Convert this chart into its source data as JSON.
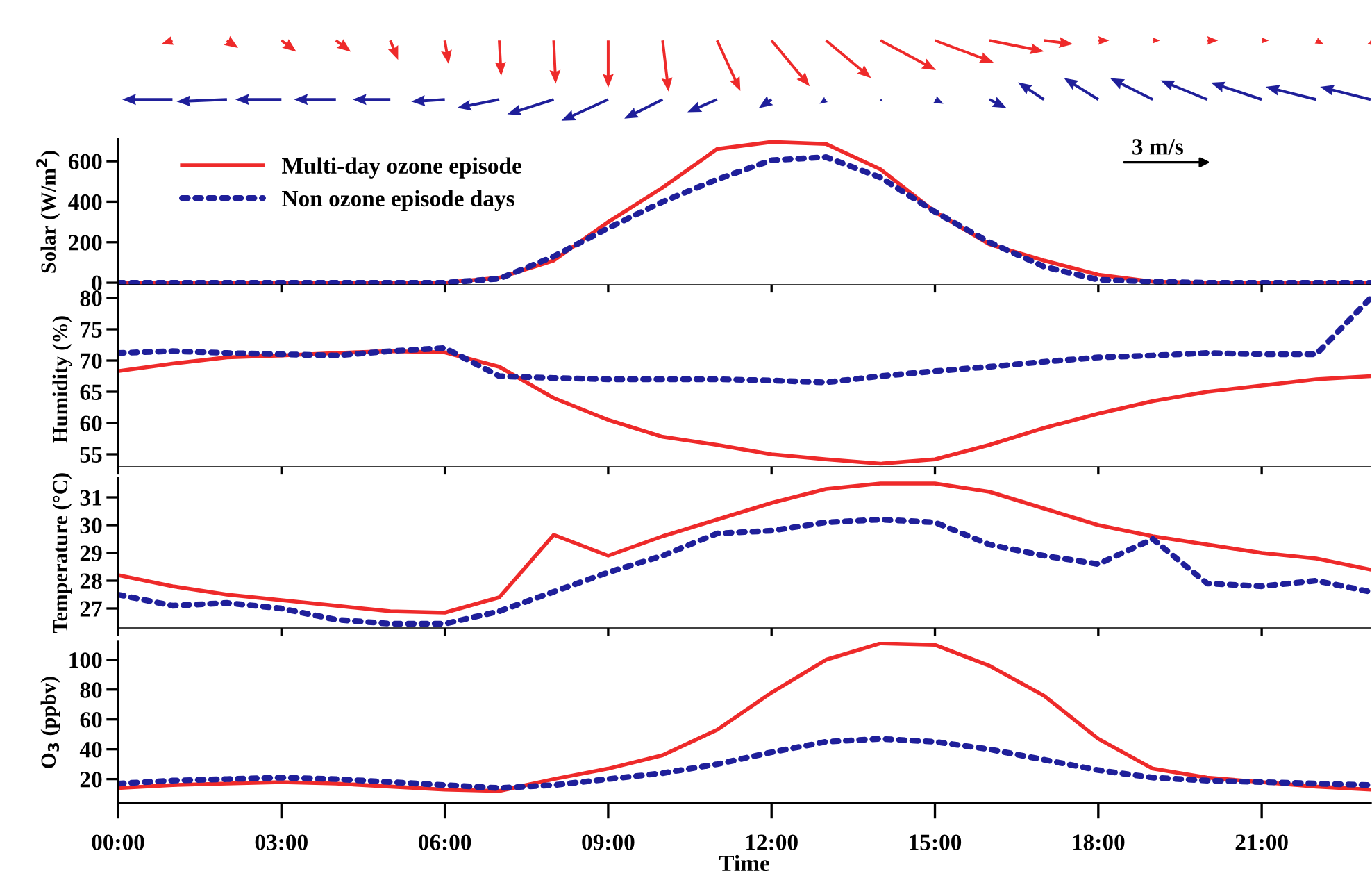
{
  "chart_data": [
    {
      "type": "line",
      "ylabel": "Solar (W/m$^{2}$)",
      "x": [
        0,
        1,
        2,
        3,
        4,
        5,
        6,
        7,
        8,
        9,
        10,
        11,
        12,
        13,
        14,
        15,
        16,
        17,
        18,
        19,
        20,
        21,
        22,
        23
      ],
      "xlim": [
        0,
        23
      ],
      "xticks": [
        {
          "value": 0,
          "label": null
        },
        {
          "value": 3,
          "label": null
        },
        {
          "value": 6,
          "label": null
        },
        {
          "value": 9,
          "label": null
        },
        {
          "value": 12,
          "label": null
        },
        {
          "value": 15,
          "label": null
        },
        {
          "value": 18,
          "label": null
        },
        {
          "value": 21,
          "label": null
        }
      ],
      "ylim": [
        -10,
        710
      ],
      "yticks": [
        0,
        200,
        400,
        600
      ],
      "legend": "top left",
      "grid": false,
      "tick_labels": "y",
      "annotations": [
        "3 m/s"
      ],
      "series": [
        {
          "name": "Multi-day ozone episode",
          "color": "#ee2a2a",
          "line_style": "solid",
          "values": [
            0,
            0,
            0,
            0,
            0,
            0,
            0,
            25,
            110,
            300,
            470,
            660,
            695,
            685,
            560,
            350,
            190,
            110,
            40,
            5,
            0,
            0,
            0,
            0
          ]
        },
        {
          "name": "Non ozone episode days",
          "color": "#1f1f9a",
          "line_style": "dotted",
          "values": [
            0,
            0,
            0,
            0,
            0,
            0,
            0,
            20,
            130,
            270,
            400,
            510,
            605,
            620,
            520,
            350,
            200,
            80,
            15,
            5,
            0,
            0,
            0,
            0
          ]
        }
      ]
    },
    {
      "type": "line",
      "ylabel": "Humidity (%)",
      "x": [
        0,
        1,
        2,
        3,
        4,
        5,
        6,
        7,
        8,
        9,
        10,
        11,
        12,
        13,
        14,
        15,
        16,
        17,
        18,
        19,
        20,
        21,
        22,
        23
      ],
      "xlim": [
        0,
        23
      ],
      "xticks": [
        {
          "value": 0,
          "label": null
        },
        {
          "value": 3,
          "label": null
        },
        {
          "value": 6,
          "label": null
        },
        {
          "value": 9,
          "label": null
        },
        {
          "value": 12,
          "label": null
        },
        {
          "value": 15,
          "label": null
        },
        {
          "value": 18,
          "label": null
        },
        {
          "value": 21,
          "label": null
        }
      ],
      "ylim": [
        53,
        81
      ],
      "yticks": [
        55,
        60,
        65,
        70,
        75,
        80
      ],
      "grid": false,
      "tick_labels": "y",
      "series": [
        {
          "color": "#ee2a2a",
          "line_style": "solid",
          "values": [
            68.3,
            69.5,
            70.5,
            70.8,
            71.2,
            71.5,
            71.3,
            69,
            64,
            60.5,
            57.8,
            56.5,
            55,
            54.2,
            53.5,
            54.2,
            56.5,
            59.2,
            61.5,
            63.5,
            65,
            66,
            67,
            67.5
          ]
        },
        {
          "color": "#1f1f9a",
          "line_style": "dotted",
          "values": [
            71.2,
            71.5,
            71.2,
            71,
            70.8,
            71.5,
            72,
            67.5,
            67.2,
            67,
            67,
            67,
            66.8,
            66.5,
            67.5,
            68.3,
            69,
            69.8,
            70.5,
            70.8,
            71.2,
            71,
            71,
            80
          ]
        }
      ]
    },
    {
      "type": "line",
      "ylabel": "Temperature (°C)",
      "x": [
        0,
        1,
        2,
        3,
        4,
        5,
        6,
        7,
        8,
        9,
        10,
        11,
        12,
        13,
        14,
        15,
        16,
        17,
        18,
        19,
        20,
        21,
        22,
        23
      ],
      "xlim": [
        0,
        23
      ],
      "xticks": [
        {
          "value": 0,
          "label": null
        },
        {
          "value": 3,
          "label": null
        },
        {
          "value": 6,
          "label": null
        },
        {
          "value": 9,
          "label": null
        },
        {
          "value": 12,
          "label": null
        },
        {
          "value": 15,
          "label": null
        },
        {
          "value": 18,
          "label": null
        },
        {
          "value": 21,
          "label": null
        }
      ],
      "ylim": [
        26.3,
        31.7
      ],
      "yticks": [
        27,
        28,
        29,
        30,
        31
      ],
      "grid": false,
      "tick_labels": "y",
      "series": [
        {
          "color": "#ee2a2a",
          "line_style": "solid",
          "values": [
            28.2,
            27.8,
            27.5,
            27.3,
            27.1,
            26.9,
            26.85,
            27.4,
            29.65,
            28.9,
            29.6,
            30.2,
            30.8,
            31.3,
            31.5,
            31.5,
            31.2,
            30.6,
            30,
            29.6,
            29.3,
            29,
            28.8,
            28.4
          ]
        },
        {
          "color": "#1f1f9a",
          "line_style": "dotted",
          "values": [
            27.5,
            27.1,
            27.2,
            27,
            26.6,
            26.45,
            26.45,
            26.9,
            27.6,
            28.3,
            28.9,
            29.7,
            29.8,
            30.1,
            30.2,
            30.1,
            29.3,
            28.9,
            28.6,
            29.5,
            27.9,
            27.8,
            28,
            27.6
          ]
        }
      ]
    },
    {
      "type": "line",
      "ylabel": "O$_{3}$ (ppbv)",
      "xlabel": "Time",
      "x": [
        0,
        1,
        2,
        3,
        4,
        5,
        6,
        7,
        8,
        9,
        10,
        11,
        12,
        13,
        14,
        15,
        16,
        17,
        18,
        19,
        20,
        21,
        22,
        23
      ],
      "xlim": [
        0,
        23
      ],
      "xticks": [
        {
          "value": 0,
          "label": "00:00"
        },
        {
          "value": 3,
          "label": "03:00"
        },
        {
          "value": 6,
          "label": "06:00"
        },
        {
          "value": 9,
          "label": "09:00"
        },
        {
          "value": 12,
          "label": "12:00"
        },
        {
          "value": 15,
          "label": "15:00"
        },
        {
          "value": 18,
          "label": "18:00"
        },
        {
          "value": 21,
          "label": "21:00"
        }
      ],
      "ylim": [
        4,
        112
      ],
      "yticks": [
        20,
        40,
        60,
        80,
        100
      ],
      "grid": false,
      "series": [
        {
          "color": "#ee2a2a",
          "line_style": "solid",
          "values": [
            14,
            16,
            17,
            18,
            17,
            15,
            13,
            12,
            20,
            27,
            36,
            53,
            78,
            100,
            111,
            110,
            96,
            76,
            47,
            27,
            21,
            18,
            15,
            13
          ]
        },
        {
          "color": "#1f1f9a",
          "line_style": "dotted",
          "values": [
            17,
            19,
            20,
            21,
            20,
            18,
            16,
            14,
            16,
            20,
            24,
            30,
            38,
            45,
            47,
            45,
            40,
            33,
            26,
            21,
            19,
            18,
            17,
            16
          ]
        }
      ]
    }
  ]
}
